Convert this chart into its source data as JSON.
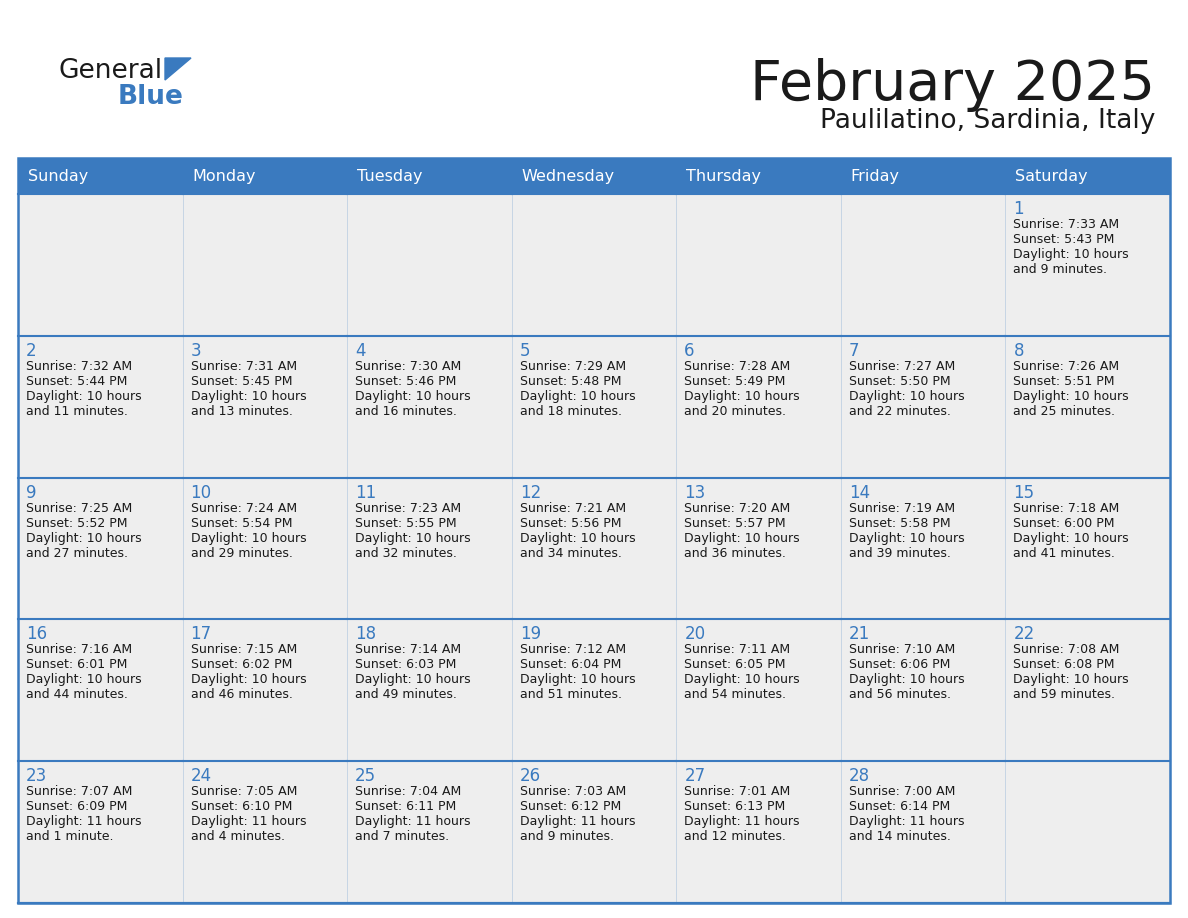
{
  "title": "February 2025",
  "subtitle": "Paulilatino, Sardinia, Italy",
  "header_bg": "#3a7abf",
  "header_text_color": "#ffffff",
  "day_names": [
    "Sunday",
    "Monday",
    "Tuesday",
    "Wednesday",
    "Thursday",
    "Friday",
    "Saturday"
  ],
  "cell_bg_light": "#eeeeee",
  "cell_bg_white": "#ffffff",
  "border_color": "#3a7abf",
  "title_color": "#1a1a1a",
  "subtitle_color": "#1a1a1a",
  "day_num_color": "#3a7abf",
  "info_color": "#1a1a1a",
  "logo_general_color": "#1a1a1a",
  "logo_blue_color": "#3a7abf",
  "calendar": [
    [
      null,
      null,
      null,
      null,
      null,
      null,
      1
    ],
    [
      2,
      3,
      4,
      5,
      6,
      7,
      8
    ],
    [
      9,
      10,
      11,
      12,
      13,
      14,
      15
    ],
    [
      16,
      17,
      18,
      19,
      20,
      21,
      22
    ],
    [
      23,
      24,
      25,
      26,
      27,
      28,
      null
    ]
  ],
  "day_info": {
    "1": {
      "sunrise": "7:33 AM",
      "sunset": "5:43 PM",
      "dl1": "Daylight: 10 hours",
      "dl2": "and 9 minutes."
    },
    "2": {
      "sunrise": "7:32 AM",
      "sunset": "5:44 PM",
      "dl1": "Daylight: 10 hours",
      "dl2": "and 11 minutes."
    },
    "3": {
      "sunrise": "7:31 AM",
      "sunset": "5:45 PM",
      "dl1": "Daylight: 10 hours",
      "dl2": "and 13 minutes."
    },
    "4": {
      "sunrise": "7:30 AM",
      "sunset": "5:46 PM",
      "dl1": "Daylight: 10 hours",
      "dl2": "and 16 minutes."
    },
    "5": {
      "sunrise": "7:29 AM",
      "sunset": "5:48 PM",
      "dl1": "Daylight: 10 hours",
      "dl2": "and 18 minutes."
    },
    "6": {
      "sunrise": "7:28 AM",
      "sunset": "5:49 PM",
      "dl1": "Daylight: 10 hours",
      "dl2": "and 20 minutes."
    },
    "7": {
      "sunrise": "7:27 AM",
      "sunset": "5:50 PM",
      "dl1": "Daylight: 10 hours",
      "dl2": "and 22 minutes."
    },
    "8": {
      "sunrise": "7:26 AM",
      "sunset": "5:51 PM",
      "dl1": "Daylight: 10 hours",
      "dl2": "and 25 minutes."
    },
    "9": {
      "sunrise": "7:25 AM",
      "sunset": "5:52 PM",
      "dl1": "Daylight: 10 hours",
      "dl2": "and 27 minutes."
    },
    "10": {
      "sunrise": "7:24 AM",
      "sunset": "5:54 PM",
      "dl1": "Daylight: 10 hours",
      "dl2": "and 29 minutes."
    },
    "11": {
      "sunrise": "7:23 AM",
      "sunset": "5:55 PM",
      "dl1": "Daylight: 10 hours",
      "dl2": "and 32 minutes."
    },
    "12": {
      "sunrise": "7:21 AM",
      "sunset": "5:56 PM",
      "dl1": "Daylight: 10 hours",
      "dl2": "and 34 minutes."
    },
    "13": {
      "sunrise": "7:20 AM",
      "sunset": "5:57 PM",
      "dl1": "Daylight: 10 hours",
      "dl2": "and 36 minutes."
    },
    "14": {
      "sunrise": "7:19 AM",
      "sunset": "5:58 PM",
      "dl1": "Daylight: 10 hours",
      "dl2": "and 39 minutes."
    },
    "15": {
      "sunrise": "7:18 AM",
      "sunset": "6:00 PM",
      "dl1": "Daylight: 10 hours",
      "dl2": "and 41 minutes."
    },
    "16": {
      "sunrise": "7:16 AM",
      "sunset": "6:01 PM",
      "dl1": "Daylight: 10 hours",
      "dl2": "and 44 minutes."
    },
    "17": {
      "sunrise": "7:15 AM",
      "sunset": "6:02 PM",
      "dl1": "Daylight: 10 hours",
      "dl2": "and 46 minutes."
    },
    "18": {
      "sunrise": "7:14 AM",
      "sunset": "6:03 PM",
      "dl1": "Daylight: 10 hours",
      "dl2": "and 49 minutes."
    },
    "19": {
      "sunrise": "7:12 AM",
      "sunset": "6:04 PM",
      "dl1": "Daylight: 10 hours",
      "dl2": "and 51 minutes."
    },
    "20": {
      "sunrise": "7:11 AM",
      "sunset": "6:05 PM",
      "dl1": "Daylight: 10 hours",
      "dl2": "and 54 minutes."
    },
    "21": {
      "sunrise": "7:10 AM",
      "sunset": "6:06 PM",
      "dl1": "Daylight: 10 hours",
      "dl2": "and 56 minutes."
    },
    "22": {
      "sunrise": "7:08 AM",
      "sunset": "6:08 PM",
      "dl1": "Daylight: 10 hours",
      "dl2": "and 59 minutes."
    },
    "23": {
      "sunrise": "7:07 AM",
      "sunset": "6:09 PM",
      "dl1": "Daylight: 11 hours",
      "dl2": "and 1 minute."
    },
    "24": {
      "sunrise": "7:05 AM",
      "sunset": "6:10 PM",
      "dl1": "Daylight: 11 hours",
      "dl2": "and 4 minutes."
    },
    "25": {
      "sunrise": "7:04 AM",
      "sunset": "6:11 PM",
      "dl1": "Daylight: 11 hours",
      "dl2": "and 7 minutes."
    },
    "26": {
      "sunrise": "7:03 AM",
      "sunset": "6:12 PM",
      "dl1": "Daylight: 11 hours",
      "dl2": "and 9 minutes."
    },
    "27": {
      "sunrise": "7:01 AM",
      "sunset": "6:13 PM",
      "dl1": "Daylight: 11 hours",
      "dl2": "and 12 minutes."
    },
    "28": {
      "sunrise": "7:00 AM",
      "sunset": "6:14 PM",
      "dl1": "Daylight: 11 hours",
      "dl2": "and 14 minutes."
    }
  }
}
